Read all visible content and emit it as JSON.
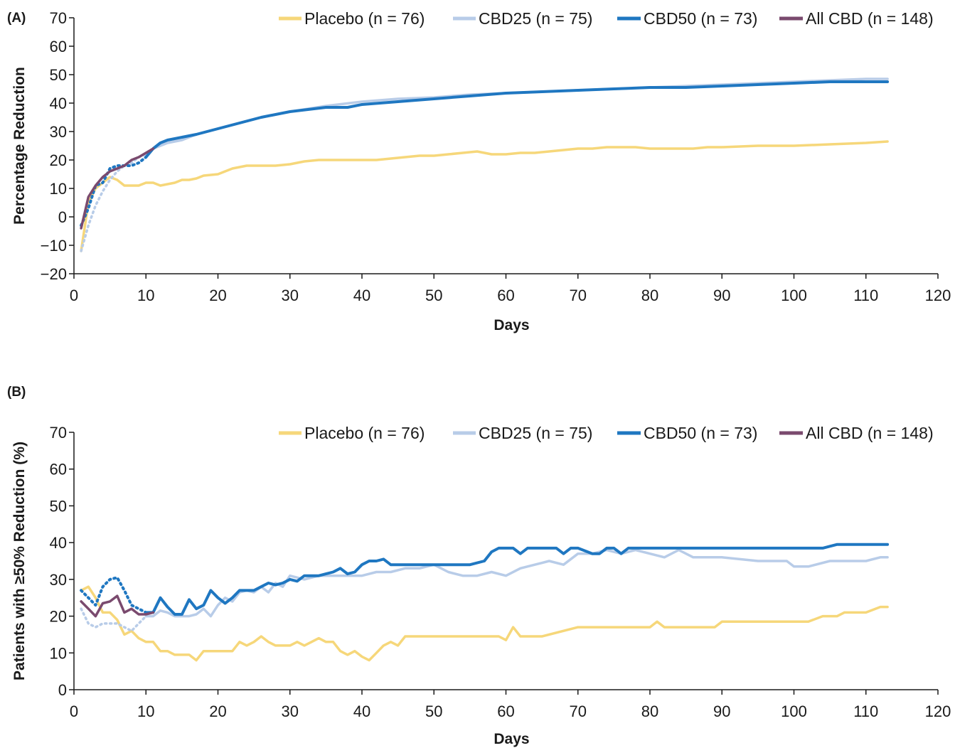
{
  "chart_data": [
    {
      "type": "line",
      "panel_label": "(A)",
      "xlabel": "Days",
      "ylabel": "Percentage Reduction",
      "xlim": [
        0,
        120
      ],
      "ylim": [
        -20,
        70
      ],
      "x_ticks": [
        0,
        10,
        20,
        30,
        40,
        50,
        60,
        70,
        80,
        90,
        100,
        110,
        120
      ],
      "y_ticks": [
        -20,
        -10,
        0,
        10,
        20,
        30,
        40,
        50,
        60,
        70
      ],
      "x_tick_labels": [
        "0",
        "10",
        "20",
        "30",
        "40",
        "50",
        "60",
        "70",
        "80",
        "90",
        "100",
        "110",
        "120"
      ],
      "y_tick_labels": [
        "−20",
        "−10",
        "0",
        "10",
        "20",
        "30",
        "40",
        "50",
        "60",
        "70"
      ],
      "grid": false,
      "legend_position": "top",
      "series": [
        {
          "name": "Placebo (n = 76)",
          "color": "#f6d77a",
          "width": 3.5,
          "x": [
            1,
            2,
            3,
            4,
            5,
            6,
            7,
            8,
            9,
            10,
            11,
            12,
            13,
            14,
            15,
            16,
            17,
            18,
            20,
            22,
            24,
            26,
            28,
            30,
            32,
            34,
            36,
            38,
            40,
            42,
            44,
            46,
            48,
            50,
            52,
            54,
            56,
            58,
            60,
            62,
            64,
            66,
            68,
            70,
            72,
            74,
            76,
            78,
            80,
            82,
            84,
            86,
            88,
            90,
            95,
            100,
            105,
            110,
            113
          ],
          "y": [
            -12,
            5,
            10,
            12,
            14,
            13,
            11,
            11,
            11,
            12,
            12,
            11,
            11.5,
            12,
            13,
            13,
            13.5,
            14.5,
            15,
            17,
            18,
            18,
            18,
            18.5,
            19.5,
            20,
            20,
            20,
            20,
            20,
            20.5,
            21,
            21.5,
            21.5,
            22,
            22.5,
            23,
            22,
            22,
            22.5,
            22.5,
            23,
            23.5,
            24,
            24,
            24.5,
            24.5,
            24.5,
            24,
            24,
            24,
            24,
            24.5,
            24.5,
            25,
            25,
            25.5,
            26,
            26.5
          ]
        },
        {
          "name": "CBD25 (n = 75)",
          "color": "#b8cce8",
          "width": 3.5,
          "x": [
            1,
            2,
            3,
            4,
            5,
            6,
            7,
            8,
            9,
            10,
            11,
            13,
            15,
            17,
            20,
            23,
            26,
            30,
            35,
            40,
            45,
            50,
            55,
            60,
            65,
            70,
            75,
            80,
            85,
            90,
            95,
            100,
            105,
            110,
            113
          ],
          "y": [
            -12,
            -3,
            4,
            9,
            13,
            16,
            18,
            19,
            21,
            22,
            24,
            26,
            27,
            29,
            31,
            33,
            35,
            37,
            39,
            40.5,
            41.5,
            42,
            43,
            43.5,
            44,
            44.5,
            45,
            45.5,
            46,
            46.5,
            47,
            47.5,
            48,
            48.5,
            48.5
          ],
          "dotted_until": 10
        },
        {
          "name": "CBD50 (n = 73)",
          "color": "#1f77c1",
          "width": 4,
          "x": [
            1,
            2,
            3,
            4,
            5,
            6,
            7,
            8,
            9,
            10,
            11,
            12,
            13,
            15,
            17,
            20,
            23,
            26,
            30,
            35,
            38,
            40,
            45,
            50,
            55,
            60,
            65,
            70,
            75,
            80,
            85,
            90,
            95,
            100,
            105,
            110,
            113
          ],
          "y": [
            -3,
            3,
            11,
            12,
            17,
            18,
            18,
            18,
            19,
            21,
            24,
            26,
            27,
            28,
            29,
            31,
            33,
            35,
            37,
            38.5,
            38.5,
            39.5,
            40.5,
            41.5,
            42.5,
            43.5,
            44,
            44.5,
            45,
            45.5,
            45.5,
            46,
            46.5,
            47,
            47.5,
            47.5,
            47.5
          ],
          "dotted_until": 10
        },
        {
          "name": "All CBD (n = 148)",
          "color": "#7a4a6e",
          "width": 3.5,
          "x": [
            1,
            2,
            3,
            4,
            5,
            6,
            7,
            8,
            9,
            10,
            11
          ],
          "y": [
            -4,
            7,
            11,
            14,
            16,
            17,
            18,
            20,
            21,
            22.5,
            24
          ]
        }
      ]
    },
    {
      "type": "line",
      "panel_label": "(B)",
      "xlabel": "Days",
      "ylabel": "Patients with ≥50% Reduction (%)",
      "xlim": [
        0,
        120
      ],
      "ylim": [
        0,
        70
      ],
      "x_ticks": [
        0,
        10,
        20,
        30,
        40,
        50,
        60,
        70,
        80,
        90,
        100,
        110,
        120
      ],
      "y_ticks": [
        0,
        10,
        20,
        30,
        40,
        50,
        60,
        70
      ],
      "x_tick_labels": [
        "0",
        "10",
        "20",
        "30",
        "40",
        "50",
        "60",
        "70",
        "80",
        "90",
        "100",
        "110",
        "120"
      ],
      "y_tick_labels": [
        "0",
        "10",
        "20",
        "30",
        "40",
        "50",
        "60",
        "70"
      ],
      "grid": false,
      "legend_position": "top",
      "series": [
        {
          "name": "Placebo (n = 76)",
          "color": "#f6d77a",
          "width": 3.5,
          "x": [
            1,
            2,
            3,
            4,
            5,
            6,
            7,
            8,
            9,
            10,
            11,
            12,
            13,
            14,
            15,
            16,
            17,
            18,
            19,
            20,
            21,
            22,
            23,
            24,
            25,
            26,
            27,
            28,
            29,
            30,
            31,
            32,
            33,
            34,
            35,
            36,
            37,
            38,
            39,
            40,
            41,
            42,
            43,
            44,
            45,
            46,
            47,
            48,
            50,
            55,
            59,
            60,
            61,
            62,
            65,
            70,
            75,
            80,
            81,
            82,
            85,
            89,
            90,
            95,
            100,
            102,
            104,
            106,
            107,
            110,
            112,
            113
          ],
          "y": [
            27,
            28,
            25,
            21,
            21,
            19,
            15,
            16,
            14,
            13,
            13,
            10.5,
            10.5,
            9.5,
            9.5,
            9.5,
            8,
            10.5,
            10.5,
            10.5,
            10.5,
            10.5,
            13,
            12,
            13,
            14.5,
            13,
            12,
            12,
            12,
            13,
            12,
            13,
            14,
            13,
            13,
            10.5,
            9.5,
            10.5,
            9,
            8,
            10,
            12,
            13,
            12,
            14.5,
            14.5,
            14.5,
            14.5,
            14.5,
            14.5,
            13.5,
            17,
            14.5,
            14.5,
            17,
            17,
            17,
            18.5,
            17,
            17,
            17,
            18.5,
            18.5,
            18.5,
            18.5,
            20,
            20,
            21,
            21,
            22.5,
            22.5
          ]
        },
        {
          "name": "CBD25 (n = 75)",
          "color": "#b8cce8",
          "width": 3.5,
          "x": [
            1,
            2,
            3,
            4,
            5,
            6,
            7,
            8,
            9,
            10,
            11,
            12,
            13,
            14,
            15,
            16,
            17,
            18,
            19,
            20,
            21,
            22,
            23,
            24,
            25,
            26,
            27,
            28,
            29,
            30,
            32,
            34,
            36,
            38,
            40,
            42,
            44,
            46,
            48,
            50,
            52,
            54,
            56,
            58,
            60,
            62,
            64,
            66,
            68,
            70,
            72,
            74,
            76,
            78,
            80,
            82,
            84,
            86,
            88,
            90,
            95,
            99,
            100,
            101,
            102,
            105,
            110,
            112,
            113
          ],
          "y": [
            22,
            18,
            17,
            18,
            18,
            18,
            17,
            16,
            18,
            20,
            20,
            21.5,
            21,
            20,
            20,
            20,
            20.5,
            22,
            20,
            23,
            25,
            24,
            26.5,
            27,
            26.5,
            28,
            26.5,
            29,
            28,
            31,
            30,
            31,
            31,
            31,
            31,
            32,
            32,
            33,
            33,
            34,
            32,
            31,
            31,
            32,
            31,
            33,
            34,
            35,
            34,
            37,
            37,
            38,
            37,
            38,
            37,
            36,
            38,
            36,
            36,
            36,
            35,
            35,
            33.5,
            33.5,
            33.5,
            35,
            35,
            36,
            36
          ],
          "dotted_until": 10
        },
        {
          "name": "CBD50 (n = 73)",
          "color": "#1f77c1",
          "width": 4,
          "x": [
            1,
            2,
            3,
            4,
            5,
            6,
            7,
            8,
            9,
            10,
            11,
            12,
            13,
            14,
            15,
            16,
            17,
            18,
            19,
            20,
            21,
            22,
            23,
            24,
            25,
            26,
            27,
            28,
            29,
            30,
            31,
            32,
            33,
            34,
            35,
            36,
            37,
            38,
            39,
            40,
            41,
            42,
            43,
            44,
            45,
            46,
            47,
            48,
            50,
            55,
            57,
            58,
            59,
            60,
            61,
            62,
            63,
            65,
            67,
            68,
            69,
            70,
            72,
            73,
            74,
            75,
            76,
            77,
            78,
            80,
            85,
            90,
            95,
            100,
            104,
            105,
            106,
            110,
            113
          ],
          "y": [
            27,
            25,
            23,
            28,
            30,
            30.5,
            27,
            23,
            22,
            21,
            21,
            25,
            22.5,
            20.5,
            20.5,
            24.5,
            22,
            23,
            27,
            25,
            23.5,
            25,
            27,
            27,
            27,
            28,
            29,
            28.5,
            29,
            30,
            29.5,
            31,
            31,
            31,
            31.5,
            32,
            33,
            31.5,
            32,
            34,
            35,
            35,
            35.5,
            34,
            34,
            34,
            34,
            34,
            34,
            34,
            35,
            37.5,
            38.5,
            38.5,
            38.5,
            37,
            38.5,
            38.5,
            38.5,
            37,
            38.5,
            38.5,
            37,
            37,
            38.5,
            38.5,
            37,
            38.5,
            38.5,
            38.5,
            38.5,
            38.5,
            38.5,
            38.5,
            38.5,
            39,
            39.5,
            39.5,
            39.5
          ],
          "dotted_until": 10
        },
        {
          "name": "All CBD (n = 148)",
          "color": "#7a4a6e",
          "width": 3.5,
          "x": [
            1,
            2,
            3,
            4,
            5,
            6,
            7,
            8,
            9,
            10,
            11
          ],
          "y": [
            24,
            22,
            20,
            23.5,
            24,
            25.5,
            21,
            22,
            20.5,
            20.5,
            21
          ]
        }
      ]
    }
  ]
}
